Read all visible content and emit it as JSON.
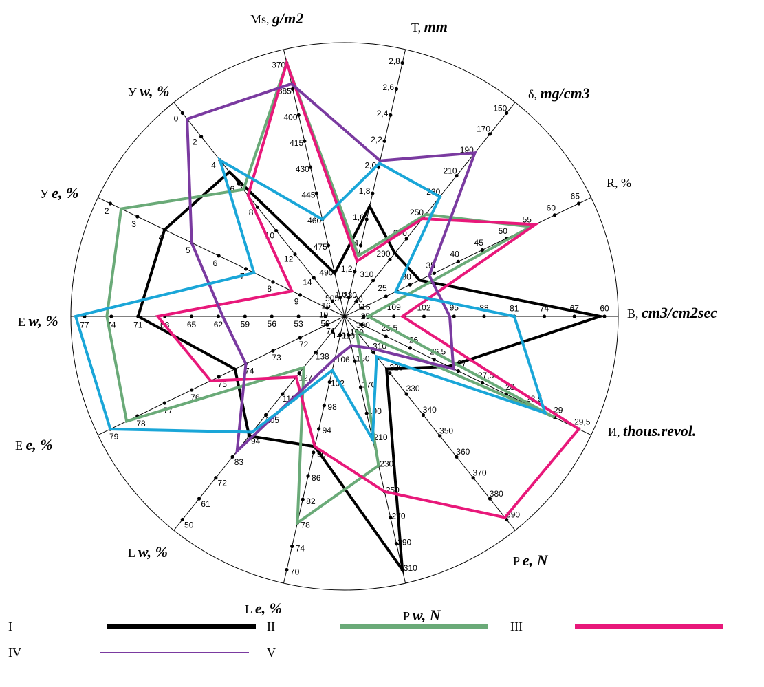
{
  "chart_data": {
    "type": "radar",
    "title": "",
    "axes": [
      {
        "prefix": "B,",
        "unit": "cm3/cm2sec",
        "ticks": [
          "116",
          "109",
          "102",
          "95",
          "88",
          "81",
          "74",
          "67",
          "60"
        ],
        "min": 116,
        "max": 60
      },
      {
        "prefix": "R,",
        "unit": "%",
        "unit_style": "plain",
        "ticks": [
          "20",
          "25",
          "30",
          "35",
          "40",
          "45",
          "50",
          "55",
          "60",
          "65"
        ],
        "min": 20,
        "max": 65
      },
      {
        "prefix": "δ,",
        "unit": "mg/cm3",
        "ticks": [
          "330",
          "310",
          "290",
          "270",
          "250",
          "230",
          "210",
          "190",
          "170",
          "150"
        ],
        "min": 330,
        "max": 150
      },
      {
        "prefix": "T,",
        "unit": "mm",
        "ticks": [
          "1,0",
          "1,2",
          "1,4",
          "1,6",
          "1,8",
          "2,0",
          "2,2",
          "2,4",
          "2,6",
          "2,8"
        ],
        "min": 1.0,
        "max": 2.8
      },
      {
        "prefix": "Ms,",
        "unit": "g/m2",
        "ticks": [
          "505",
          "490",
          "475",
          "460",
          "445",
          "430",
          "415",
          "400",
          "385",
          "370"
        ],
        "min": 505,
        "max": 370
      },
      {
        "prefix": "У",
        "unit": "w, %",
        "ticks": [
          "16",
          "14",
          "12",
          "10",
          "8",
          "6",
          "4",
          "2",
          "0"
        ],
        "min": 16,
        "max": 0
      },
      {
        "prefix": "У",
        "unit": "e, %",
        "ticks": [
          "10",
          "9",
          "8",
          "7",
          "6",
          "5",
          "4",
          "3",
          "2"
        ],
        "min": 10,
        "max": 2
      },
      {
        "prefix": "Е",
        "unit": "w, %",
        "ticks": [
          "50",
          "53",
          "56",
          "59",
          "62",
          "65",
          "68",
          "71",
          "74",
          "77"
        ],
        "min": 50,
        "max": 77
      },
      {
        "prefix": "Е",
        "unit": "e, %",
        "ticks": [
          "71",
          "72",
          "73",
          "74",
          "75",
          "76",
          "77",
          "78",
          "79"
        ],
        "min": 71,
        "max": 79
      },
      {
        "prefix": "L",
        "unit": "w, %",
        "ticks": [
          "149",
          "138",
          "127",
          "116",
          "105",
          "94",
          "83",
          "72",
          "61",
          "50"
        ],
        "min": 149,
        "max": 50
      },
      {
        "prefix": "L",
        "unit": "e, %",
        "ticks": [
          "110",
          "106",
          "102",
          "98",
          "94",
          "90",
          "86",
          "82",
          "78",
          "74",
          "70"
        ],
        "min": 110,
        "max": 70
      },
      {
        "prefix": "P",
        "unit": "w, N",
        "ticks": [
          "130",
          "150",
          "170",
          "190",
          "210",
          "230",
          "250",
          "270",
          "290",
          "310"
        ],
        "min": 130,
        "max": 310
      },
      {
        "prefix": "P",
        "unit": "e, N",
        "ticks": [
          "300",
          "310",
          "320",
          "330",
          "340",
          "350",
          "360",
          "370",
          "380",
          "390"
        ],
        "min": 300,
        "max": 390
      },
      {
        "prefix": "И,",
        "unit": "thous.revol.",
        "ticks": [
          "25",
          "25,5",
          "26",
          "26,5",
          "27",
          "27,5",
          "28",
          "28,5",
          "29",
          "29,5"
        ],
        "min": 25,
        "max": 29.5
      }
    ],
    "series": [
      {
        "name": "I",
        "color": "#000000",
        "values": [
          61,
          32,
          284,
          1.7,
          491,
          5.0,
          4.0,
          71,
          74.4,
          94,
          91,
          310,
          318,
          26.8
        ]
      },
      {
        "name": "II",
        "color": "#6aaa78",
        "values": [
          115,
          55,
          247,
          1.32,
          370,
          6.5,
          2.4,
          74.5,
          78.4,
          130,
          78,
          230,
          300,
          29.0
        ]
      },
      {
        "name": "III",
        "color": "#e8187a",
        "values": [
          107,
          56,
          251,
          1.28,
          370,
          7.0,
          8.7,
          68.8,
          75.3,
          125,
          91,
          250,
          389,
          29.5
        ]
      },
      {
        "name": "IV",
        "color": "#7a3aa0",
        "values": [
          96,
          34,
          188,
          2.05,
          382,
          0.5,
          5.0,
          61.5,
          74.0,
          86,
          106,
          138,
          308,
          26.9
        ]
      },
      {
        "name": "V",
        "color": "#1aa6d8",
        "values": [
          81,
          27,
          230,
          2.03,
          460,
          4.0,
          7.3,
          78,
          79.0,
          96,
          104,
          210,
          312,
          28.8
        ]
      }
    ],
    "legend": {
      "placement": "bottom",
      "rows": [
        [
          "I",
          "II",
          "III"
        ],
        [
          "IV",
          "V"
        ]
      ]
    }
  }
}
